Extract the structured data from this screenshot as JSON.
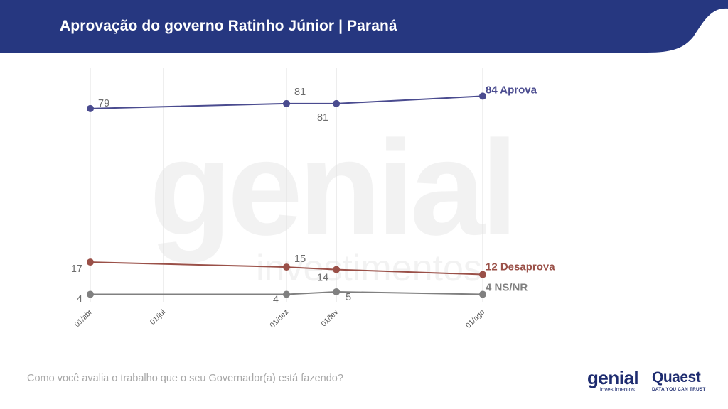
{
  "header": {
    "title": "Aprovação do governo Ratinho Júnior | Paraná",
    "color": "#263780"
  },
  "watermark": {
    "logo_text": "genial",
    "sub_text": "investimentos"
  },
  "footer": {
    "question": "Como você avalia o trabalho que o seu Governador(a) está fazendo?",
    "logo_genial": "genial",
    "logo_genial_sub": "investimentos",
    "logo_quaest": "Quaest",
    "logo_quaest_sub": "DATA YOU CAN TRUST"
  },
  "chart_data": {
    "type": "line",
    "title": "Aprovação do governo Ratinho Júnior | Paraná",
    "x": [
      "2019-04-01",
      "2019-12-01",
      "2020-02-01",
      "2020-08-01"
    ],
    "x_ticks": [
      {
        "date": "2019-04-01",
        "label": "01/abr"
      },
      {
        "date": "2019-07-01",
        "label": "01/jul"
      },
      {
        "date": "2019-12-01",
        "label": "01/dez"
      },
      {
        "date": "2020-02-01",
        "label": "01/fev"
      },
      {
        "date": "2020-08-01",
        "label": "01/ago"
      }
    ],
    "ylim": [
      0,
      100
    ],
    "grid": "vertical",
    "legend": "end-of-line labels",
    "series": [
      {
        "name": "Aprova",
        "values": [
          79,
          81,
          81,
          84
        ],
        "color": "#4a4b8f",
        "end_label": "84 Aprova",
        "labels": [
          "79",
          "81",
          "81",
          "84 Aprova"
        ]
      },
      {
        "name": "Desaprova",
        "values": [
          17,
          15,
          14,
          12
        ],
        "color": "#9a5048",
        "end_label": "12 Desaprova",
        "labels": [
          "17",
          "15",
          "14",
          "12 Desaprova"
        ]
      },
      {
        "name": "NS/NR",
        "values": [
          4,
          4,
          5,
          4
        ],
        "color": "#808080",
        "end_label": "4 NS/NR",
        "labels": [
          "4",
          "4",
          "5",
          "4 NS/NR"
        ]
      }
    ]
  }
}
